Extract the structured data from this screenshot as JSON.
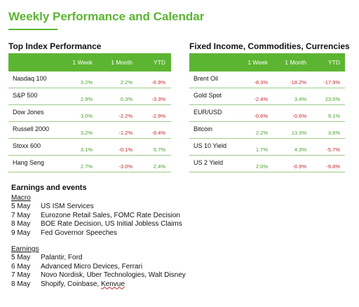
{
  "title": "Weekly Performance and Calendar",
  "index_table": {
    "heading": "Top Index Performance",
    "columns": [
      "1 Week",
      "1 Month",
      "YTD"
    ],
    "rows": [
      {
        "name": "Nasdaq 100",
        "w": "3.2%",
        "m": "2.2%",
        "y": "-6.9%"
      },
      {
        "name": "S&P 500",
        "w": "2.9%",
        "m": "0.3%",
        "y": "-3.3%"
      },
      {
        "name": "Dow Jones",
        "w": "3.0%",
        "m": "-2.2%",
        "y": "-2.9%"
      },
      {
        "name": "Russell 2000",
        "w": "3.2%",
        "m": "-1.2%",
        "y": "-9.4%"
      },
      {
        "name": "Stoxx 600",
        "w": "3.1%",
        "m": "-0.1%",
        "y": "5.7%"
      },
      {
        "name": "Hang Seng",
        "w": "2.7%",
        "m": "-3.0%",
        "y": "2.4%"
      }
    ]
  },
  "fx_table": {
    "heading": "Fixed Income, Commodities, Currencies",
    "columns": [
      "1 Week",
      "1 Month",
      "YTD"
    ],
    "rows": [
      {
        "name": "Brent Oil",
        "w": "-8.3%",
        "m": "-18.2%",
        "y": "-17.9%"
      },
      {
        "name": "Gold Spot",
        "w": "-2.4%",
        "m": "3.4%",
        "y": "23.5%"
      },
      {
        "name": "EUR/USD",
        "w": "-0.6%",
        "m": "-0.6%",
        "y": "9.1%"
      },
      {
        "name": "Bitcoin",
        "w": "2.2%",
        "m": "13.3%",
        "y": "3.6%"
      },
      {
        "name": "US 10 Yield",
        "w": "1.7%",
        "m": "4.3%",
        "y": "-5.7%"
      },
      {
        "name": "US 2 Yield",
        "w": "2.0%",
        "m": "-0.9%",
        "y": "-9.8%"
      }
    ]
  },
  "events": {
    "title": "Earnings and events",
    "groups": [
      {
        "name": "Macro",
        "items": [
          {
            "date": "5 May",
            "text": "US ISM Services"
          },
          {
            "date": "7 May",
            "text": "Eurozone Retail Sales, FOMC Rate Decision"
          },
          {
            "date": "8 May",
            "text": "BOE Rate Decision, US Initial Jobless Claims"
          },
          {
            "date": "9 May",
            "text": "Fed Governor Speeches"
          }
        ]
      },
      {
        "name": "Earnings",
        "items": [
          {
            "date": "5 May",
            "text": "Palantir, Ford"
          },
          {
            "date": "6 May",
            "text": "Advanced Micro Devices, Ferrari"
          },
          {
            "date": "7 May",
            "text": "Novo Nordisk, Uber Technologies, Walt Disney"
          },
          {
            "date": "8 May",
            "text": "Shopify, Coinbase, ",
            "underlined": "Kenvue"
          }
        ]
      }
    ]
  }
}
